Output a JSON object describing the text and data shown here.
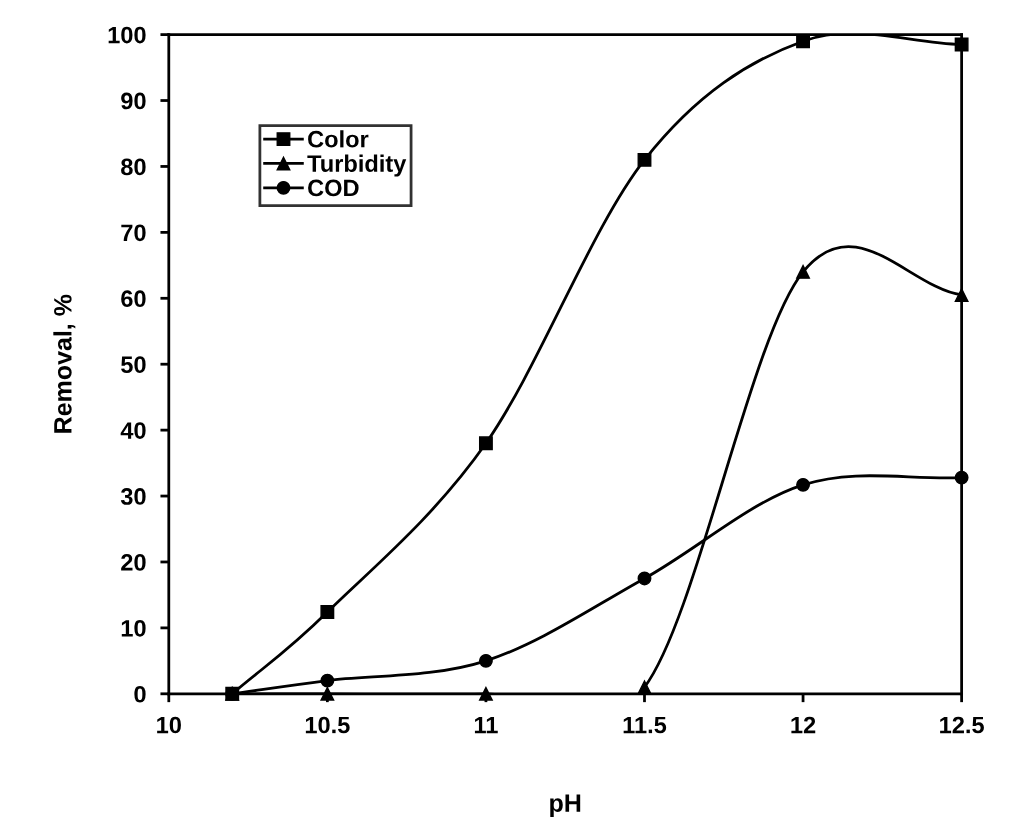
{
  "chart_data": {
    "type": "line",
    "xlabel": "pH",
    "ylabel": "Removal, %",
    "xlim": [
      10,
      12.5
    ],
    "xticks": [
      10,
      10.5,
      11,
      11.5,
      12,
      12.5
    ],
    "ylim": [
      0,
      100
    ],
    "yticks": [
      0,
      10,
      20,
      30,
      40,
      50,
      60,
      70,
      80,
      90,
      100
    ],
    "grid": false,
    "legend": "top left",
    "line_style": "solid",
    "x": [
      10.2,
      10.5,
      11,
      11.5,
      12,
      12.5
    ],
    "series": [
      {
        "name": "Color",
        "color": "#000000",
        "marker": "square",
        "values": [
          0,
          12.4,
          38,
          81,
          99,
          98.5
        ]
      },
      {
        "name": "Turbidity",
        "color": "#000000",
        "marker": "triangle",
        "values": [
          0,
          0,
          0,
          1,
          64,
          60.5
        ]
      },
      {
        "name": "COD",
        "color": "#000000",
        "marker": "circle",
        "values": [
          0,
          2,
          5,
          17.5,
          31.7,
          32.8
        ]
      }
    ]
  }
}
